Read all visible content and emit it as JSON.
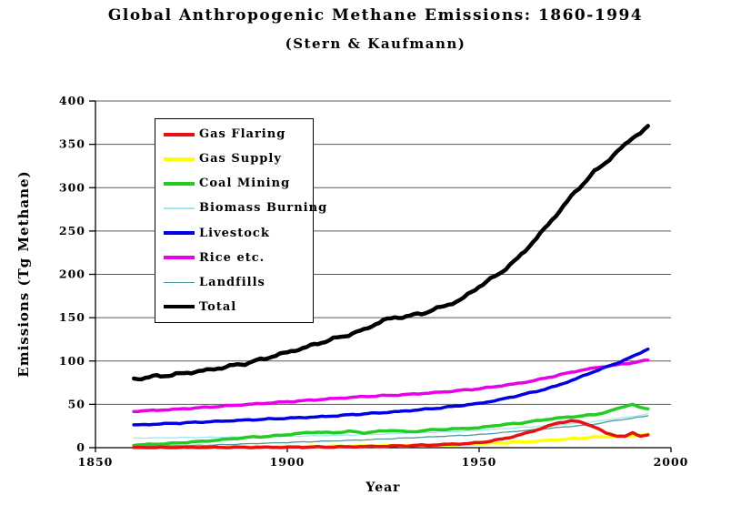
{
  "page": {
    "background": "#ffffff"
  },
  "title": {
    "line1": "Global Anthropogenic Methane Emissions: 1860-1994",
    "line2": "(Stern & Kaufmann)"
  },
  "chart_data": {
    "type": "line",
    "title": "Global Anthropogenic Methane Emissions: 1860-1994 (Stern & Kaufmann)",
    "xlabel": "Year",
    "ylabel": "Emissions (Tg Methane)",
    "xlim": [
      1850,
      2000
    ],
    "ylim": [
      0,
      400
    ],
    "x_ticks": [
      1850,
      1900,
      1950,
      2000
    ],
    "y_ticks": [
      0,
      50,
      100,
      150,
      200,
      250,
      300,
      350,
      400
    ],
    "grid": true,
    "legend_position": "upper-left",
    "gridline_color": "#5a5a5a",
    "axis_color": "#000000",
    "data_start_year": 1860,
    "data_end_year": 1994,
    "series": [
      {
        "name": "Gas Flaring",
        "color": "#e81010",
        "thick": true,
        "points": [
          [
            1860,
            0
          ],
          [
            1880,
            0.3
          ],
          [
            1900,
            0.5
          ],
          [
            1910,
            0.8
          ],
          [
            1920,
            1.2
          ],
          [
            1930,
            2
          ],
          [
            1940,
            3.5
          ],
          [
            1948,
            5
          ],
          [
            1952,
            7
          ],
          [
            1956,
            10
          ],
          [
            1960,
            14
          ],
          [
            1964,
            19
          ],
          [
            1968,
            25
          ],
          [
            1971,
            29
          ],
          [
            1974,
            31
          ],
          [
            1977,
            29
          ],
          [
            1980,
            24
          ],
          [
            1983,
            17
          ],
          [
            1986,
            13.5
          ],
          [
            1988,
            13
          ],
          [
            1990,
            17
          ],
          [
            1992,
            13.5
          ],
          [
            1994,
            15
          ]
        ]
      },
      {
        "name": "Gas Supply",
        "color": "#ffff00",
        "thick": true,
        "points": [
          [
            1860,
            0.5
          ],
          [
            1880,
            0.8
          ],
          [
            1900,
            1.2
          ],
          [
            1910,
            1.5
          ],
          [
            1920,
            2
          ],
          [
            1930,
            2.5
          ],
          [
            1940,
            3
          ],
          [
            1950,
            4.5
          ],
          [
            1955,
            5.5
          ],
          [
            1960,
            6.5
          ],
          [
            1965,
            7.5
          ],
          [
            1970,
            9
          ],
          [
            1975,
            10.5
          ],
          [
            1980,
            12
          ],
          [
            1985,
            13
          ],
          [
            1990,
            14
          ],
          [
            1994,
            15
          ]
        ]
      },
      {
        "name": "Coal Mining",
        "color": "#22cc22",
        "thick": true,
        "points": [
          [
            1860,
            3
          ],
          [
            1865,
            4
          ],
          [
            1870,
            5
          ],
          [
            1875,
            6.5
          ],
          [
            1880,
            8
          ],
          [
            1885,
            10
          ],
          [
            1890,
            12
          ],
          [
            1895,
            13
          ],
          [
            1900,
            15
          ],
          [
            1904,
            17
          ],
          [
            1908,
            18
          ],
          [
            1912,
            17
          ],
          [
            1916,
            19
          ],
          [
            1920,
            17
          ],
          [
            1924,
            19
          ],
          [
            1928,
            20
          ],
          [
            1932,
            18
          ],
          [
            1936,
            20
          ],
          [
            1940,
            21
          ],
          [
            1945,
            22
          ],
          [
            1950,
            23
          ],
          [
            1955,
            26
          ],
          [
            1960,
            28
          ],
          [
            1965,
            31
          ],
          [
            1970,
            34
          ],
          [
            1975,
            36
          ],
          [
            1980,
            38
          ],
          [
            1984,
            42
          ],
          [
            1988,
            48
          ],
          [
            1990,
            50
          ],
          [
            1992,
            46
          ],
          [
            1994,
            45
          ]
        ]
      },
      {
        "name": "Biomass Burning",
        "color": "#9fe8f2",
        "thick": false,
        "points": [
          [
            1860,
            11
          ],
          [
            1880,
            12
          ],
          [
            1900,
            13
          ],
          [
            1920,
            15
          ],
          [
            1940,
            18
          ],
          [
            1950,
            20
          ],
          [
            1960,
            23
          ],
          [
            1970,
            26
          ],
          [
            1980,
            30
          ],
          [
            1985,
            33
          ],
          [
            1990,
            36
          ],
          [
            1994,
            39
          ]
        ]
      },
      {
        "name": "Livestock",
        "color": "#0000e6",
        "thick": true,
        "points": [
          [
            1860,
            26
          ],
          [
            1880,
            30
          ],
          [
            1900,
            34
          ],
          [
            1910,
            36
          ],
          [
            1920,
            39
          ],
          [
            1930,
            42
          ],
          [
            1940,
            46
          ],
          [
            1950,
            51
          ],
          [
            1955,
            55
          ],
          [
            1960,
            60
          ],
          [
            1965,
            65
          ],
          [
            1970,
            71
          ],
          [
            1975,
            79
          ],
          [
            1980,
            88
          ],
          [
            1985,
            96
          ],
          [
            1990,
            105
          ],
          [
            1994,
            114
          ]
        ]
      },
      {
        "name": "Rice etc.",
        "color": "#e800e8",
        "thick": true,
        "points": [
          [
            1860,
            42
          ],
          [
            1870,
            44
          ],
          [
            1880,
            47
          ],
          [
            1890,
            50
          ],
          [
            1900,
            53
          ],
          [
            1910,
            56
          ],
          [
            1920,
            59
          ],
          [
            1930,
            61
          ],
          [
            1940,
            64
          ],
          [
            1950,
            68
          ],
          [
            1960,
            74
          ],
          [
            1965,
            78
          ],
          [
            1970,
            83
          ],
          [
            1975,
            88
          ],
          [
            1980,
            92
          ],
          [
            1985,
            95
          ],
          [
            1990,
            98
          ],
          [
            1994,
            101
          ]
        ]
      },
      {
        "name": "Landfills",
        "color": "#4d9999",
        "thick": false,
        "points": [
          [
            1860,
            1.5
          ],
          [
            1880,
            3
          ],
          [
            1900,
            6
          ],
          [
            1920,
            9
          ],
          [
            1940,
            13
          ],
          [
            1950,
            15
          ],
          [
            1960,
            19
          ],
          [
            1970,
            23
          ],
          [
            1980,
            27
          ],
          [
            1985,
            31
          ],
          [
            1990,
            34
          ],
          [
            1994,
            37
          ]
        ]
      },
      {
        "name": "Total",
        "color": "#000000",
        "thick": true,
        "points": [
          [
            1860,
            79
          ],
          [
            1865,
            82
          ],
          [
            1870,
            84
          ],
          [
            1875,
            87
          ],
          [
            1880,
            90
          ],
          [
            1885,
            94
          ],
          [
            1890,
            98
          ],
          [
            1895,
            104
          ],
          [
            1900,
            110
          ],
          [
            1905,
            116
          ],
          [
            1910,
            123
          ],
          [
            1915,
            129
          ],
          [
            1920,
            136
          ],
          [
            1925,
            147
          ],
          [
            1928,
            150
          ],
          [
            1932,
            152
          ],
          [
            1936,
            156
          ],
          [
            1940,
            162
          ],
          [
            1945,
            170
          ],
          [
            1950,
            186
          ],
          [
            1955,
            200
          ],
          [
            1960,
            218
          ],
          [
            1965,
            242
          ],
          [
            1970,
            268
          ],
          [
            1975,
            295
          ],
          [
            1980,
            318
          ],
          [
            1985,
            337
          ],
          [
            1990,
            358
          ],
          [
            1992,
            363
          ],
          [
            1994,
            370
          ]
        ]
      }
    ],
    "draw_order": [
      "Gas Supply",
      "Landfills",
      "Biomass Burning",
      "Coal Mining",
      "Gas Flaring",
      "Rice etc.",
      "Livestock",
      "Total"
    ]
  },
  "legend": {
    "order": [
      "Gas Flaring",
      "Gas Supply",
      "Coal Mining",
      "Biomass Burning",
      "Livestock",
      "Rice etc.",
      "Landfills",
      "Total"
    ]
  }
}
